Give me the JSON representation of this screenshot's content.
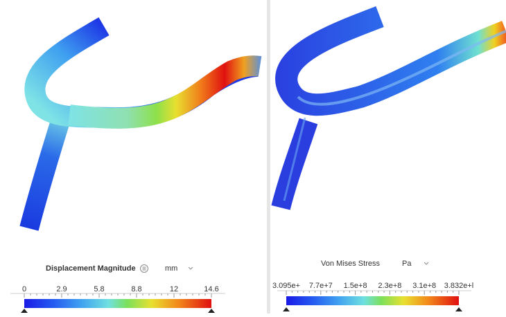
{
  "panels": [
    {
      "legend": {
        "title": "Displacement Magnitude",
        "unit": "mm",
        "ticks": [
          "0",
          "2.9",
          "5.8",
          "8.8",
          "12",
          "14.6"
        ]
      }
    },
    {
      "legend": {
        "title": "Von Mises Stress",
        "unit": "Pa",
        "ticks": [
          "3.095e+",
          "7.7e+7",
          "1.5e+8",
          "2.3e+8",
          "3.1e+8",
          "3.832e+l"
        ]
      }
    }
  ]
}
